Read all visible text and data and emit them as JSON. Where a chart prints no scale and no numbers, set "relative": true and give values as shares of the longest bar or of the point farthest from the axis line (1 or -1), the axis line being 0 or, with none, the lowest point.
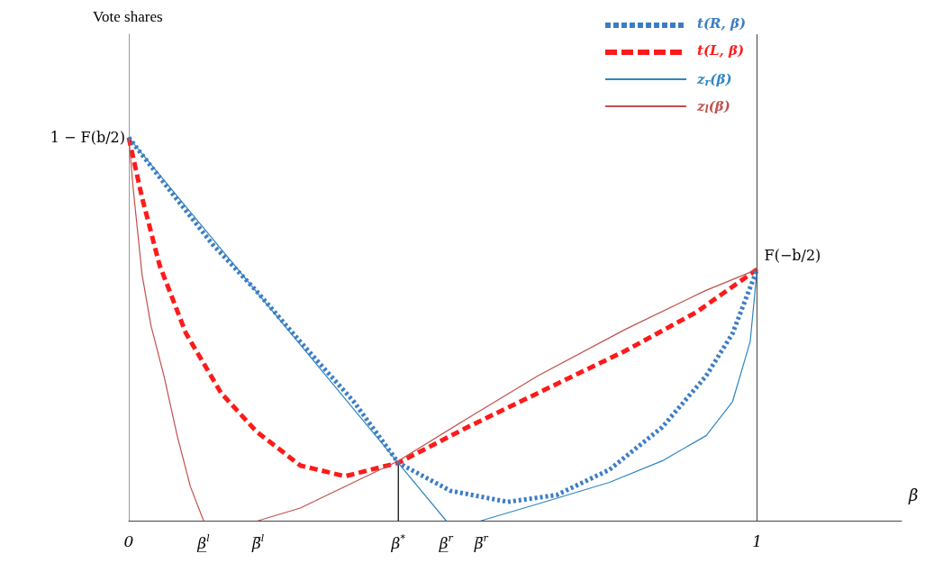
{
  "chart_data": {
    "type": "line",
    "relative": true,
    "xlabel": "β",
    "xlim": [
      0,
      1.23
    ],
    "xticks": [
      0,
      {
        "value": 0.119,
        "label": "β̲$^{l}$"
      },
      {
        "value": 0.206,
        "label": "β̅$^{l}$"
      },
      {
        "value": 0.429,
        "label": "β$^{*}$"
      },
      {
        "value": 0.505,
        "label": "β̲$^{r}$"
      },
      {
        "value": 0.561,
        "label": "β̅$^{r}$"
      },
      1
    ],
    "legend": "top right",
    "grid": false,
    "marker": "none",
    "series": [
      {
        "name": "t(R, β)",
        "color": "#3b7dc4",
        "line_style": "dotted",
        "x": [
          0,
          0.063,
          0.133,
          0.203,
          0.273,
          0.358,
          0.429,
          0.512,
          0.603,
          0.681,
          0.765,
          0.849,
          0.919,
          0.961,
          1
        ],
        "values": [
          1,
          0.867,
          0.722,
          0.6,
          0.467,
          0.311,
          0.151,
          0.078,
          0.049,
          0.067,
          0.133,
          0.244,
          0.378,
          0.489,
          0.656
        ]
      },
      {
        "name": "t(L, β)",
        "color": "#ff1a1a",
        "line_style": "dashed",
        "x": [
          0,
          0.021,
          0.049,
          0.091,
          0.147,
          0.203,
          0.273,
          0.344,
          0.429,
          0.539,
          0.651,
          0.791,
          0.903,
          1
        ],
        "values": [
          1,
          0.844,
          0.667,
          0.489,
          0.333,
          0.233,
          0.144,
          0.116,
          0.151,
          0.244,
          0.333,
          0.444,
          0.544,
          0.656
        ]
      },
      {
        "name": "z$_{r}$(β)",
        "color": "#2e86c1",
        "line_style": "solid",
        "x": [
          0,
          0.505,
          0.533,
          0.561,
          0.652,
          0.765,
          0.849,
          0.919,
          0.961,
          0.989,
          1
        ],
        "values": [
          1,
          0,
          null,
          0,
          0.044,
          0.1,
          0.156,
          0.222,
          0.311,
          0.467,
          0.656
        ]
      },
      {
        "name": "z$_{l}$(β)",
        "color": "#c0504d",
        "line_style": "solid",
        "x": [
          0,
          0.007,
          0.021,
          0.035,
          0.056,
          0.077,
          0.098,
          0.119,
          0.164,
          0.206,
          0.273,
          0.372,
          0.429,
          0.539,
          0.651,
          0.791,
          0.917,
          1
        ],
        "values": [
          1,
          0.867,
          0.644,
          0.511,
          0.378,
          0.222,
          0.089,
          0,
          null,
          0,
          0.033,
          0.111,
          0.156,
          0.267,
          0.378,
          0.5,
          0.6,
          0.656
        ]
      },
      {
        "color": "#000000",
        "line_style": "solid",
        "x": [
          0.429,
          0.429
        ],
        "values": [
          0,
          0.151
        ]
      }
    ],
    "ref_lines": [
      {
        "axis": "x",
        "value": 1,
        "color": "#555555"
      }
    ],
    "annotations": [
      "Vote shares",
      {
        "text": "1 − F(b/2)",
        "x": 0,
        "y": 1
      },
      {
        "text": "F(−b/2)",
        "x": 1,
        "y": 0.656
      }
    ]
  }
}
